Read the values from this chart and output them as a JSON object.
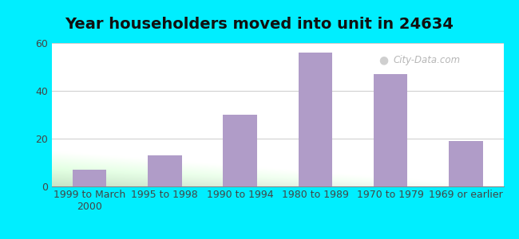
{
  "title": "Year householders moved into unit in 24634",
  "categories": [
    "1999 to March\n2000",
    "1995 to 1998",
    "1990 to 1994",
    "1980 to 1989",
    "1970 to 1979",
    "1969 or earlier"
  ],
  "values": [
    7,
    13,
    30,
    56,
    47,
    19
  ],
  "bar_color": "#b09cc8",
  "ylim": [
    0,
    60
  ],
  "yticks": [
    0,
    20,
    40,
    60
  ],
  "background_outer": "#00eeff",
  "background_inner_top_left": "#e8f5e8",
  "background_inner_top_right": "#f8f8ff",
  "background_inner_bottom_left": "#c8ecc8",
  "background_inner_bottom_right": "#f0f0f8",
  "grid_color": "#cccccc",
  "title_fontsize": 14,
  "tick_fontsize": 9,
  "watermark": "City-Data.com"
}
